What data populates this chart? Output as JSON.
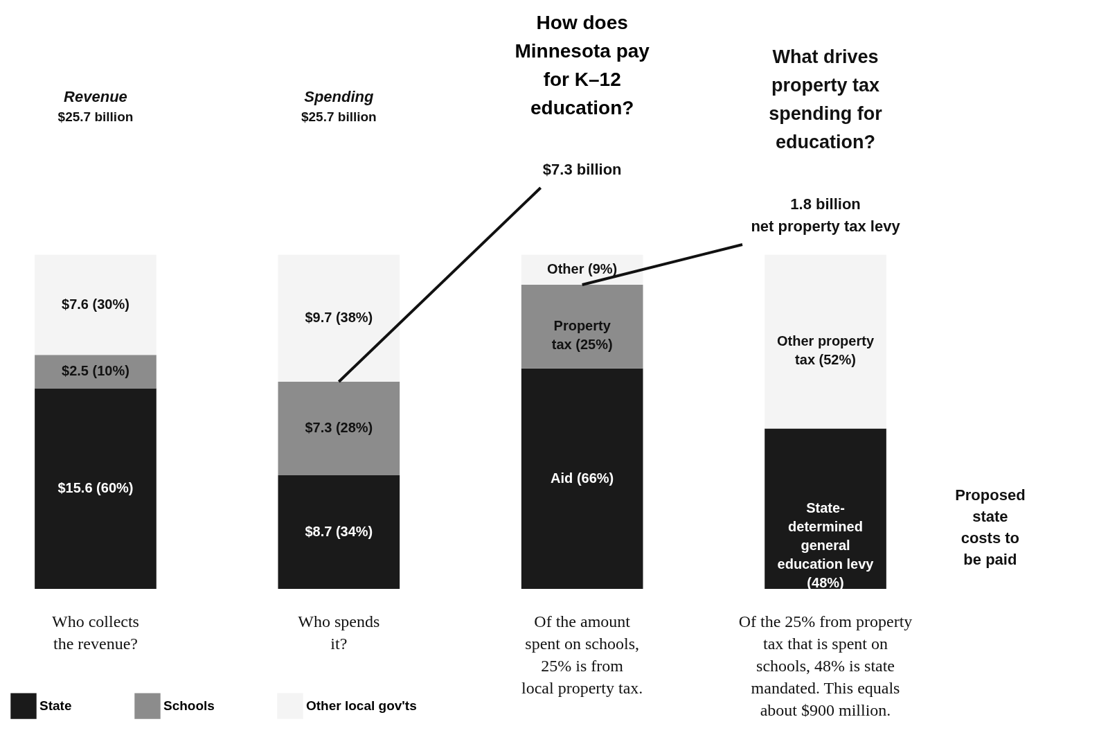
{
  "chart_data": {
    "type": "bar",
    "stacked": true,
    "title": "How does\nMinnesota pay\nfor K–12\neducation?",
    "categories": [
      "Who collects\nthe revenue?",
      "Who spends\nit?",
      "Of the amount\nspent on schools,\n25% is from\nlocal property tax.",
      "Of the 25% from property\ntax that is spent on\nschools, 48% is state\nmandated. This equals\nabout $900 million."
    ],
    "series": [
      {
        "name": "State",
        "color": "#1a1a1a",
        "values": [
          60,
          34,
          66,
          48
        ],
        "value_labels": [
          "$15.6 (60%)",
          "$8.7 (34%)",
          "Aid (66%)",
          "State-\ndetermined\ngeneral\neducation levy\n(48%)"
        ]
      },
      {
        "name": "Schools",
        "color": "#8c8c8c",
        "values": [
          10,
          28,
          25,
          null
        ],
        "value_labels": [
          "$2.5 (10%)",
          "$7.3 (28%)",
          "Property\ntax (25%)",
          null
        ]
      },
      {
        "name": "Other local gov'ts",
        "color": "#f4f4f4",
        "values": [
          30,
          38,
          9,
          52
        ],
        "value_labels": [
          "$7.6 (30%)",
          "$9.7 (38%)",
          "Other (9%)",
          "Other property\ntax (52%)"
        ]
      }
    ],
    "legend": "bottom left",
    "annotations": [
      "Revenue",
      "$25.7 billion",
      "Spending",
      "$25.7 billion",
      {
        "text": "$7.3 billion",
        "x": "Who spends\nit?",
        "y": 62
      },
      "What drives\nproperty tax\nspending for\neducation?",
      {
        "text": "1.8 billion\nnet property tax levy",
        "x": "Of the amount\nspent on schools,\n25% is from\nlocal property tax.",
        "y": 91
      },
      "Proposed\nstate\ncosts to\nbe paid"
    ]
  }
}
